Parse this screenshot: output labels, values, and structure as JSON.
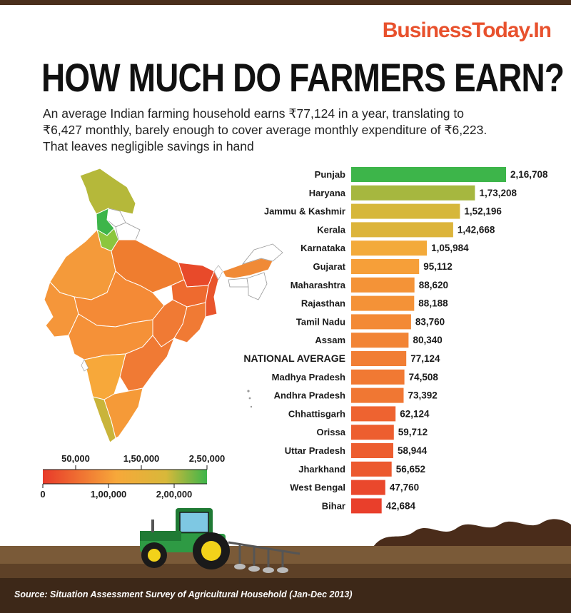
{
  "brand": "BusinessToday.In",
  "title": "HOW MUCH DO FARMERS EARN?",
  "subtitle": "An average Indian farming household earns ₹77,124 in a year, translating to ₹6,427 monthly, barely enough to cover average monthly expenditure of ₹6,223. That leaves negligible savings in hand",
  "source": "Source: Situation Assessment Survey of Agricultural Household (Jan-Dec 2013)",
  "colors": {
    "high": "#3db54a",
    "mid": "#f7a83a",
    "low": "#e83a2a",
    "soil": "#6b4a2b",
    "brand": "#e8512d"
  },
  "legend": {
    "top_ticks": [
      "50,000",
      "1,50,000",
      "2,50,000"
    ],
    "bottom_ticks": [
      "0",
      "1,00,000",
      "2,00,000"
    ],
    "range": [
      0,
      250000
    ]
  },
  "chart_data": {
    "type": "bar",
    "orientation": "horizontal",
    "categories": [
      "Punjab",
      "Haryana",
      "Jammu & Kashmir",
      "Kerala",
      "Karnataka",
      "Gujarat",
      "Maharashtra",
      "Rajasthan",
      "Tamil Nadu",
      "Assam",
      "NATIONAL AVERAGE",
      "Madhya Pradesh",
      "Andhra Pradesh",
      "Chhattisgarh",
      "Orissa",
      "Uttar Pradesh",
      "Jharkhand",
      "West Bengal",
      "Bihar"
    ],
    "values": [
      216708,
      173208,
      152196,
      142668,
      105984,
      95112,
      88620,
      88188,
      83760,
      80340,
      77124,
      74508,
      73392,
      62124,
      59712,
      58944,
      56652,
      47760,
      42684
    ],
    "value_labels": [
      "2,16,708",
      "1,73,208",
      "1,52,196",
      "1,42,668",
      "1,05,984",
      "95,112",
      "88,620",
      "88,188",
      "83,760",
      "80,340",
      "77,124",
      "74,508",
      "73,392",
      "62,124",
      "59,712",
      "58,944",
      "56,652",
      "47,760",
      "42,684"
    ],
    "highlight": "NATIONAL AVERAGE",
    "xlim": [
      0,
      250000
    ]
  }
}
